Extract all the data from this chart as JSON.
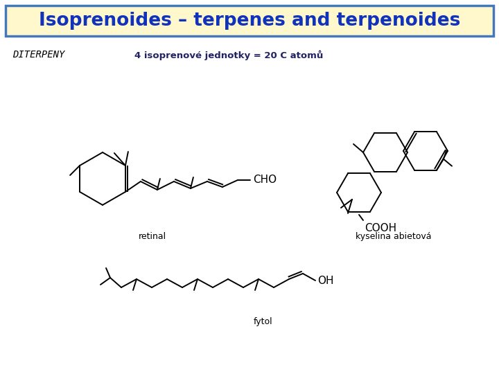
{
  "title": "Isoprenoides – terpenes and terpenoides",
  "title_bg": "#FFF8CC",
  "title_border": "#4477BB",
  "title_color": "#1133BB",
  "subtitle": "4 isoprenové jednotky = 20 C atomů",
  "subtitle_color": "#222266",
  "diterpeny_label": "DITERPENY",
  "label_retinal": "retinal",
  "label_kyselina": "kyselina abietová",
  "label_fytol": "fytol",
  "bg_color": "#FFFFFF",
  "line_color": "#000000"
}
